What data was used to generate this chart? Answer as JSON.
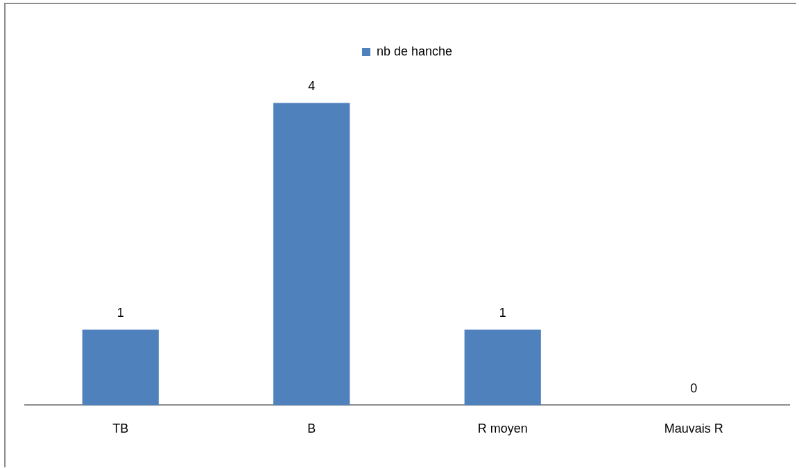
{
  "chart_data": {
    "type": "bar",
    "categories": [
      "TB",
      "B",
      "R moyen",
      "Mauvais R"
    ],
    "series": [
      {
        "name": "nb de hanche",
        "color": "#4f81bd",
        "values": [
          1,
          4,
          1,
          0
        ]
      }
    ],
    "data_labels": true,
    "legend": "top",
    "grid": false
  }
}
